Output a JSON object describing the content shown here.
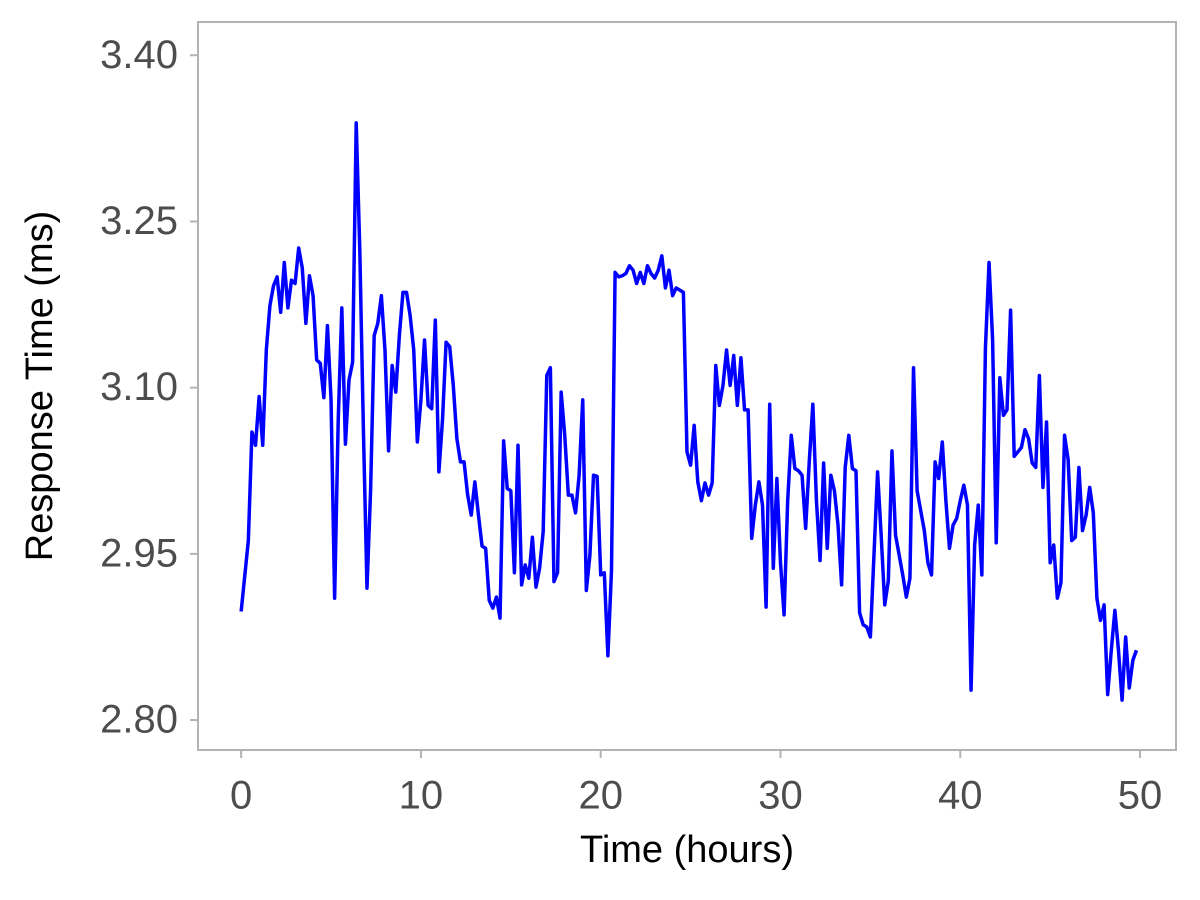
{
  "chart_data": {
    "type": "line",
    "x_label": "Time (hours)",
    "y_label": "Response Time (ms)",
    "color": "#0000ff",
    "xlim": [
      -2.4,
      52.0
    ],
    "ylim": [
      2.773,
      3.43
    ],
    "xticks": [
      0,
      10,
      20,
      30,
      40,
      50
    ],
    "yticks": [
      {
        "value": 2.8,
        "label": "2.80"
      },
      2.95,
      {
        "value": 3.1,
        "label": "3.10"
      },
      3.25,
      {
        "value": 3.4,
        "label": "3.40"
      }
    ],
    "grid": false,
    "x": [
      0,
      0.4,
      0.6,
      0.8,
      1.0,
      1.2,
      1.4,
      1.6,
      1.8,
      2.0,
      2.2,
      2.4,
      2.6,
      2.8,
      3.0,
      3.2,
      3.4,
      3.6,
      3.8,
      4.0,
      4.2,
      4.4,
      4.6,
      4.8,
      5.0,
      5.2,
      5.4,
      5.6,
      5.8,
      6.0,
      6.2,
      6.4,
      6.6,
      6.8,
      7.0,
      7.2,
      7.4,
      7.6,
      7.8,
      8.0,
      8.2,
      8.4,
      8.6,
      8.8,
      9.0,
      9.2,
      9.4,
      9.6,
      9.8,
      10.0,
      10.2,
      10.4,
      10.6,
      10.8,
      11.0,
      11.2,
      11.4,
      11.6,
      11.8,
      12.0,
      12.2,
      12.4,
      12.6,
      12.8,
      13.0,
      13.2,
      13.4,
      13.6,
      13.8,
      14.0,
      14.2,
      14.4,
      14.6,
      14.8,
      15.0,
      15.2,
      15.4,
      15.6,
      15.8,
      16.0,
      16.2,
      16.4,
      16.6,
      16.8,
      17.0,
      17.2,
      17.4,
      17.6,
      17.8,
      18.0,
      18.2,
      18.4,
      18.6,
      18.8,
      19.0,
      19.2,
      19.4,
      19.6,
      19.8,
      20.0,
      20.2,
      20.4,
      20.6,
      20.8,
      21.0,
      21.2,
      21.4,
      21.6,
      21.8,
      22.0,
      22.2,
      22.4,
      22.6,
      22.8,
      23.0,
      23.2,
      23.4,
      23.6,
      23.8,
      24.0,
      24.2,
      24.4,
      24.6,
      24.8,
      25.0,
      25.2,
      25.4,
      25.6,
      25.8,
      26.0,
      26.2,
      26.4,
      26.6,
      26.8,
      27.0,
      27.2,
      27.4,
      27.6,
      27.8,
      28.0,
      28.2,
      28.4,
      28.6,
      28.8,
      29.0,
      29.2,
      29.4,
      29.6,
      29.8,
      30.0,
      30.2,
      30.4,
      30.6,
      30.8,
      31.0,
      31.2,
      31.4,
      31.6,
      31.8,
      32.0,
      32.2,
      32.4,
      32.6,
      32.8,
      33.0,
      33.2,
      33.4,
      33.6,
      33.8,
      34.0,
      34.2,
      34.4,
      34.6,
      34.8,
      35.0,
      35.2,
      35.4,
      35.6,
      35.8,
      36.0,
      36.2,
      36.4,
      36.6,
      36.8,
      37.0,
      37.2,
      37.4,
      37.6,
      37.8,
      38.0,
      38.2,
      38.4,
      38.6,
      38.8,
      39.0,
      39.2,
      39.4,
      39.6,
      39.8,
      40.0,
      40.2,
      40.4,
      40.6,
      40.8,
      41.0,
      41.2,
      41.4,
      41.6,
      41.8,
      42.0,
      42.2,
      42.4,
      42.6,
      42.8,
      43.0,
      43.2,
      43.4,
      43.6,
      43.8,
      44.0,
      44.2,
      44.4,
      44.6,
      44.8,
      45.0,
      45.2,
      45.4,
      45.6,
      45.8,
      46.0,
      46.2,
      46.4,
      46.6,
      46.8,
      47.0,
      47.2,
      47.4,
      47.6,
      47.8,
      48.0,
      48.2,
      48.4,
      48.6,
      48.8,
      49.0,
      49.2,
      49.4,
      49.6,
      49.8
    ],
    "values": [
      2.898,
      2.962,
      3.06,
      3.048,
      3.092,
      3.048,
      3.134,
      3.174,
      3.192,
      3.2,
      3.168,
      3.213,
      3.172,
      3.197,
      3.194,
      3.226,
      3.208,
      3.158,
      3.201,
      3.183,
      3.125,
      3.122,
      3.091,
      3.156,
      3.089,
      2.91,
      3.071,
      3.172,
      3.049,
      3.107,
      3.123,
      3.339,
      3.224,
      3.062,
      2.919,
      3.007,
      3.147,
      3.158,
      3.183,
      3.134,
      3.043,
      3.12,
      3.096,
      3.147,
      3.186,
      3.186,
      3.165,
      3.134,
      3.051,
      3.089,
      3.143,
      3.084,
      3.081,
      3.161,
      3.024,
      3.071,
      3.141,
      3.137,
      3.102,
      3.054,
      3.033,
      3.033,
      3.003,
      2.985,
      3.015,
      2.985,
      2.957,
      2.955,
      2.908,
      2.901,
      2.911,
      2.892,
      3.052,
      3.009,
      3.007,
      2.933,
      3.048,
      2.922,
      2.94,
      2.928,
      2.965,
      2.92,
      2.937,
      2.97,
      3.111,
      3.118,
      2.925,
      2.933,
      3.096,
      3.057,
      3.003,
      3.003,
      2.987,
      3.021,
      3.089,
      2.917,
      2.949,
      3.021,
      3.02,
      2.931,
      2.933,
      2.858,
      2.935,
      3.204,
      3.2,
      3.201,
      3.203,
      3.21,
      3.206,
      3.194,
      3.204,
      3.194,
      3.21,
      3.203,
      3.199,
      3.206,
      3.219,
      3.19,
      3.206,
      3.183,
      3.19,
      3.188,
      3.186,
      3.042,
      3.03,
      3.066,
      3.015,
      2.998,
      3.014,
      3.003,
      3.014,
      3.12,
      3.084,
      3.102,
      3.134,
      3.102,
      3.129,
      3.084,
      3.127,
      3.08,
      3.08,
      2.964,
      2.994,
      3.015,
      2.994,
      2.902,
      3.085,
      2.937,
      3.018,
      2.942,
      2.895,
      2.998,
      3.057,
      3.027,
      3.025,
      3.021,
      2.973,
      3.033,
      3.085,
      2.998,
      2.944,
      3.032,
      2.955,
      3.021,
      3.007,
      2.976,
      2.922,
      3.028,
      3.057,
      3.027,
      3.025,
      2.897,
      2.886,
      2.884,
      2.875,
      2.949,
      3.024,
      2.967,
      2.904,
      2.926,
      3.043,
      2.967,
      2.949,
      2.931,
      2.911,
      2.928,
      3.118,
      3.007,
      2.989,
      2.971,
      2.942,
      2.931,
      3.033,
      3.018,
      3.051,
      2.998,
      2.955,
      2.976,
      2.982,
      2.998,
      3.012,
      2.994,
      2.827,
      2.958,
      2.994,
      2.931,
      3.136,
      3.213,
      3.143,
      2.96,
      3.109,
      3.075,
      3.08,
      3.17,
      3.038,
      3.042,
      3.046,
      3.062,
      3.054,
      3.032,
      3.028,
      3.111,
      3.01,
      3.069,
      2.942,
      2.958,
      2.91,
      2.924,
      3.057,
      3.035,
      2.962,
      2.965,
      3.028,
      2.971,
      2.985,
      3.01,
      2.987,
      2.91,
      2.89,
      2.904,
      2.823,
      2.863,
      2.899,
      2.863,
      2.818,
      2.875,
      2.829,
      2.854,
      2.863
    ]
  }
}
